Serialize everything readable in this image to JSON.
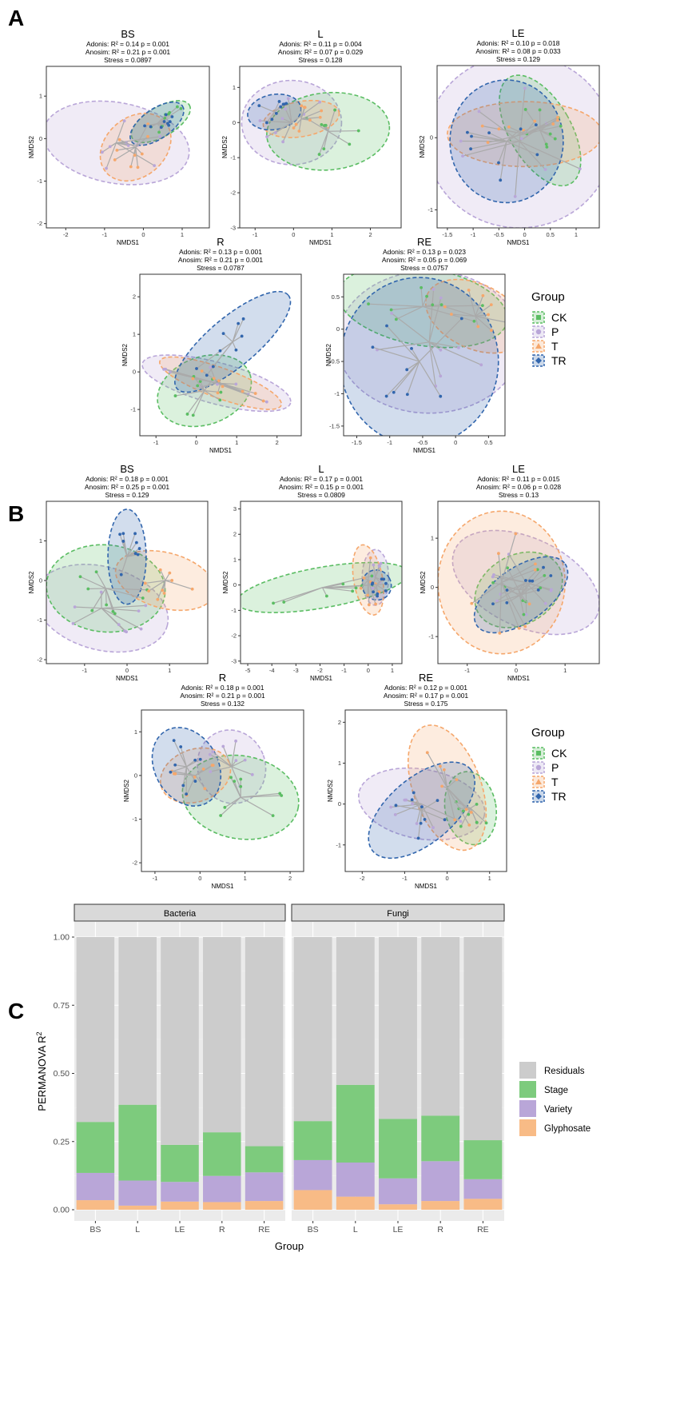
{
  "colors": {
    "CK": "#5bbd63",
    "P": "#b9a6d8",
    "T": "#f5a76c",
    "TR": "#3266ad",
    "Residuals": "#cccccc",
    "Stage": "#7dcb7d",
    "Variety": "#b9a6d8",
    "Glyphosate": "#f8bb86",
    "segment": "#aaaaaa"
  },
  "panel_labels": [
    "A",
    "B",
    "C"
  ],
  "nmds_panels": [
    {
      "section": "A",
      "plots": [
        {
          "name": "BS",
          "adonis": "Adonis: R² = 0.14 p = 0.001",
          "anosim": "Anosim: R² = 0.21 p = 0.001",
          "stress": "Stress = 0.0897",
          "xlim": [
            -2.5,
            1.7
          ],
          "ylim": [
            -2.1,
            1.7
          ],
          "xticks": [
            -2,
            -1,
            0,
            1
          ],
          "yticks": [
            -2,
            -1,
            0,
            1
          ],
          "xlabel": "NMDS1",
          "ylabel": "NMDS2",
          "ellipses": {
            "P": [
              -0.7,
              -0.1,
              1.9,
              0.95,
              -10
            ],
            "T": [
              -0.2,
              -0.2,
              1.0,
              0.7,
              40
            ],
            "CK": [
              0.45,
              0.4,
              0.85,
              0.35,
              30
            ],
            "TR": [
              0.35,
              0.35,
              0.8,
              0.35,
              35
            ]
          }
        },
        {
          "name": "L",
          "adonis": "Adonis: R² = 0.11 p = 0.004",
          "anosim": "Anosim: R² = 0.07 p = 0.029",
          "stress": "Stress = 0.128",
          "xlim": [
            -1.4,
            2.8
          ],
          "ylim": [
            -3.0,
            1.6
          ],
          "xticks": [
            -1,
            0,
            1,
            2
          ],
          "yticks": [
            -3,
            -2,
            -1,
            0,
            1
          ],
          "xlabel": "NMDS1",
          "ylabel": "NMDS2",
          "ellipses": {
            "P": [
              -0.05,
              0.0,
              1.3,
              1.2,
              0
            ],
            "CK": [
              0.9,
              -0.25,
              1.6,
              1.1,
              5
            ],
            "T": [
              0.2,
              0.1,
              1.0,
              0.5,
              10
            ],
            "TR": [
              -0.5,
              0.3,
              0.7,
              0.5,
              10
            ]
          }
        },
        {
          "name": "LE",
          "adonis": "Adonis: R² = 0.10 p = 0.018",
          "anosim": "Anosim: R² = 0.08 p = 0.033",
          "stress": "Stress = 0.129",
          "xlim": [
            -1.7,
            1.45
          ],
          "ylim": [
            -1.25,
            1.0
          ],
          "xticks": [
            -1.5,
            -1.0,
            -0.5,
            0.0,
            0.5,
            1.0
          ],
          "yticks": [
            -1,
            0
          ],
          "xlabel": "NMDS1",
          "ylabel": "NMDS2",
          "ellipses": {
            "P": [
              -0.1,
              -0.05,
              1.8,
              1.2,
              0
            ],
            "TR": [
              -0.35,
              -0.05,
              1.1,
              0.85,
              0
            ],
            "T": [
              0.0,
              0.05,
              1.5,
              0.45,
              0
            ],
            "CK": [
              0.3,
              0.1,
              0.6,
              0.85,
              30
            ]
          }
        }
      ]
    },
    {
      "section": "A2",
      "plots": [
        {
          "name": "R",
          "adonis": "Adonis: R² = 0.13 p = 0.001",
          "anosim": "Anosim: R² = 0.21 p = 0.001",
          "stress": "Stress = 0.0787",
          "xlim": [
            -1.4,
            2.6
          ],
          "ylim": [
            -1.7,
            2.6
          ],
          "xticks": [
            -1,
            0,
            1,
            2
          ],
          "yticks": [
            -1,
            0,
            1,
            2
          ],
          "xlabel": "NMDS1",
          "ylabel": "NMDS2",
          "ellipses": {
            "P": [
              0.5,
              -0.3,
              1.9,
              0.55,
              -15
            ],
            "CK": [
              0.2,
              -0.5,
              1.2,
              0.9,
              20
            ],
            "T": [
              0.6,
              -0.3,
              1.6,
              0.4,
              -20
            ],
            "TR": [
              0.9,
              0.8,
              1.8,
              0.65,
              40
            ]
          }
        },
        {
          "name": "RE",
          "adonis": "Adonis: R² = 0.13 p = 0.023",
          "anosim": "Anosim: R² = 0.05 p = 0.069",
          "stress": "Stress = 0.0757",
          "xlim": [
            -1.7,
            0.75
          ],
          "ylim": [
            -1.65,
            0.85
          ],
          "xticks": [
            -1.5,
            -1.0,
            -0.5,
            0.0,
            0.5
          ],
          "yticks": [
            -1.5,
            -1.0,
            -0.5,
            0.0,
            0.5
          ],
          "xlabel": "NMDS1",
          "ylabel": "NMDS2",
          "ellipses": {
            "P": [
              -0.4,
              -0.2,
              1.4,
              1.1,
              0
            ],
            "TR": [
              -0.55,
              -0.5,
              1.2,
              1.3,
              0
            ],
            "CK": [
              -0.5,
              0.35,
              1.3,
              0.6,
              -10
            ],
            "T": [
              0.3,
              0.2,
              0.8,
              0.5,
              -25
            ]
          }
        }
      ]
    },
    {
      "section": "B",
      "plots": [
        {
          "name": "BS",
          "adonis": "Adonis: R² = 0.18 p = 0.001",
          "anosim": "Anosim: R² = 0.25 p = 0.001",
          "stress": "Stress = 0.129",
          "xlim": [
            -1.9,
            1.9
          ],
          "ylim": [
            -2.1,
            2.0
          ],
          "xticks": [
            -1,
            0,
            1
          ],
          "yticks": [
            -2,
            -1,
            0,
            1
          ],
          "xlabel": "NMDS1",
          "ylabel": "NMDS2",
          "ellipses": {
            "CK": [
              -0.5,
              -0.2,
              1.4,
              1.1,
              -5
            ],
            "P": [
              -0.6,
              -0.7,
              1.6,
              1.05,
              -15
            ],
            "TR": [
              0.0,
              0.6,
              0.45,
              1.2,
              0
            ],
            "T": [
              0.9,
              0.0,
              1.2,
              0.7,
              -15
            ]
          }
        },
        {
          "name": "L",
          "adonis": "Adonis: R² = 0.17 p = 0.001",
          "anosim": "Anosim: R² = 0.15 p = 0.001",
          "stress": "Stress = 0.0809",
          "xlim": [
            -5.3,
            1.4
          ],
          "ylim": [
            -3.1,
            3.3
          ],
          "xticks": [
            -5,
            -4,
            -3,
            -2,
            -1,
            0,
            1
          ],
          "yticks": [
            -3,
            -2,
            -1,
            0,
            1,
            2,
            3
          ],
          "xlabel": "NMDS1",
          "ylabel": "NMDS2",
          "ellipses": {
            "CK": [
              -1.9,
              -0.1,
              3.6,
              0.8,
              10
            ],
            "T": [
              0.0,
              0.2,
              0.6,
              1.4,
              10
            ],
            "P": [
              0.3,
              0.3,
              0.55,
              1.1,
              0
            ],
            "TR": [
              0.35,
              0.0,
              0.6,
              0.6,
              30
            ]
          }
        },
        {
          "name": "LE",
          "adonis": "Adonis: R² = 0.11 p = 0.015",
          "anosim": "Anosim: R² = 0.06 p = 0.028",
          "stress": "Stress = 0.13",
          "xlim": [
            -1.6,
            1.7
          ],
          "ylim": [
            -1.55,
            1.75
          ],
          "xticks": [
            -1,
            0,
            1
          ],
          "yticks": [
            -1,
            0,
            1
          ],
          "xlabel": "NMDS1",
          "ylabel": "NMDS2",
          "ellipses": {
            "P": [
              0.2,
              0.1,
              1.6,
              0.9,
              -25
            ],
            "T": [
              -0.3,
              0.1,
              1.3,
              1.45,
              0
            ],
            "CK": [
              0.05,
              -0.05,
              0.95,
              0.7,
              30
            ],
            "TR": [
              0.1,
              -0.15,
              1.1,
              0.55,
              35
            ]
          }
        }
      ]
    },
    {
      "section": "B2",
      "plots": [
        {
          "name": "R",
          "adonis": "Adonis: R² = 0.18 p = 0.001",
          "anosim": "Anosim: R² = 0.21 p = 0.001",
          "stress": "Stress = 0.132",
          "xlim": [
            -1.3,
            2.3
          ],
          "ylim": [
            -2.2,
            1.5
          ],
          "xticks": [
            -1,
            0,
            1,
            2
          ],
          "yticks": [
            -2,
            -1,
            0,
            1
          ],
          "xlabel": "NMDS1",
          "ylabel": "NMDS2",
          "ellipses": {
            "CK": [
              0.9,
              -0.5,
              1.3,
              0.95,
              -10
            ],
            "P": [
              0.7,
              0.2,
              0.75,
              0.85,
              20
            ],
            "T": [
              -0.1,
              0.0,
              0.8,
              0.6,
              20
            ],
            "TR": [
              -0.3,
              0.2,
              0.7,
              0.95,
              30
            ]
          }
        },
        {
          "name": "RE",
          "adonis": "Adonis: R² = 0.12 p = 0.001",
          "anosim": "Anosim: R² = 0.17 p = 0.001",
          "stress": "Stress = 0.175",
          "xlim": [
            -2.4,
            1.4
          ],
          "ylim": [
            -1.65,
            2.3
          ],
          "xticks": [
            -2,
            -1,
            0,
            1
          ],
          "yticks": [
            -1,
            0,
            1,
            2
          ],
          "xlabel": "NMDS1",
          "ylabel": "NMDS2",
          "ellipses": {
            "P": [
              -0.6,
              0.0,
              1.5,
              0.85,
              -10
            ],
            "TR": [
              -0.6,
              -0.15,
              1.5,
              0.8,
              40
            ],
            "T": [
              0.0,
              0.4,
              0.8,
              1.6,
              20
            ],
            "CK": [
              0.55,
              -0.1,
              0.6,
              0.9,
              10
            ]
          }
        }
      ]
    }
  ],
  "legend": {
    "title": "Group",
    "items": [
      "CK",
      "P",
      "T",
      "TR"
    ]
  },
  "chart_data": {
    "type": "bar",
    "stacked": true,
    "facets": [
      "Bacteria",
      "Fungi"
    ],
    "categories": [
      "BS",
      "L",
      "LE",
      "R",
      "RE"
    ],
    "xlabel": "Group",
    "ylabel": "PERMANOVA R",
    "ylabel_sup": "2",
    "ylim": [
      0,
      1
    ],
    "yticks": [
      "0.00",
      "0.25",
      "0.50",
      "0.75",
      "1.00"
    ],
    "ytick_values": [
      0,
      0.25,
      0.5,
      0.75,
      1.0
    ],
    "series": [
      {
        "name": "Glyphosate",
        "Bacteria": [
          0.035,
          0.015,
          0.03,
          0.028,
          0.032
        ],
        "Fungi": [
          0.072,
          0.048,
          0.02,
          0.032,
          0.04
        ]
      },
      {
        "name": "Variety",
        "Bacteria": [
          0.1,
          0.092,
          0.072,
          0.096,
          0.105
        ],
        "Fungi": [
          0.11,
          0.125,
          0.095,
          0.146,
          0.072
        ]
      },
      {
        "name": "Stage",
        "Bacteria": [
          0.187,
          0.278,
          0.136,
          0.16,
          0.096
        ],
        "Fungi": [
          0.143,
          0.285,
          0.218,
          0.167,
          0.143
        ]
      },
      {
        "name": "Residuals",
        "Bacteria": [
          0.678,
          0.615,
          0.762,
          0.716,
          0.767
        ],
        "Fungi": [
          0.675,
          0.542,
          0.667,
          0.655,
          0.745
        ]
      }
    ],
    "legend_order": [
      "Residuals",
      "Stage",
      "Variety",
      "Glyphosate"
    ]
  }
}
